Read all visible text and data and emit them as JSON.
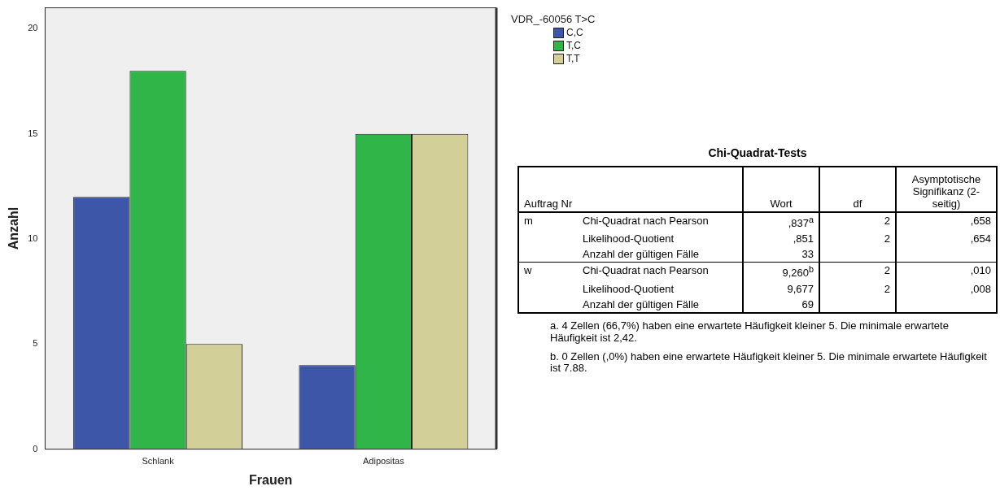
{
  "chart_data": [
    {
      "type": "bar",
      "xlabel": "Frauen",
      "ylabel": "Anzahl",
      "legend_title": "VDR_-60056 T>C",
      "categories": [
        "Schlank",
        "Adipositas"
      ],
      "series": [
        {
          "name": "C,C",
          "color": "#3d56a8",
          "values": [
            12,
            4
          ]
        },
        {
          "name": "T,C",
          "color": "#2fb548",
          "values": [
            18,
            15
          ]
        },
        {
          "name": "T,T",
          "color": "#d3cf98",
          "values": [
            5,
            15
          ]
        }
      ],
      "ylim": [
        0,
        21
      ],
      "yticks": [
        0,
        5,
        10,
        15,
        20
      ],
      "grid": false,
      "legend": "top right"
    },
    {
      "type": "other",
      "title": "Chi-Quadrat-Tests",
      "categories": [
        "Auftrag Nr",
        null,
        "Wort",
        "df",
        "Asymptotische Signifikanz (2-seitig)"
      ],
      "cells": [
        [
          "m",
          "Chi-Quadrat nach Pearson",
          ",837$^{a}$",
          "2",
          ",658"
        ],
        [
          null,
          "Likelihood-Quotient",
          ",851",
          "2",
          ",654"
        ],
        [
          null,
          "Anzahl der gültigen Fälle",
          "33",
          null,
          null
        ],
        [
          "w",
          "Chi-Quadrat nach Pearson",
          "9,260$^{b}$",
          "2",
          ",010"
        ],
        [
          null,
          "Likelihood-Quotient",
          "9,677",
          "2",
          ",008"
        ],
        [
          null,
          "Anzahl der gültigen Fälle",
          "69",
          null,
          null
        ]
      ],
      "annotations": [
        "a. 4 Zellen (66,7%) haben eine erwartete Häufigkeit kleiner 5. Die minimale erwartete Häufigkeit ist 2,42.",
        "b. 0 Zellen (,0%) haben eine erwartete Häufigkeit kleiner 5. Die minimale erwartete Häufigkeit ist 7.88."
      ]
    }
  ]
}
